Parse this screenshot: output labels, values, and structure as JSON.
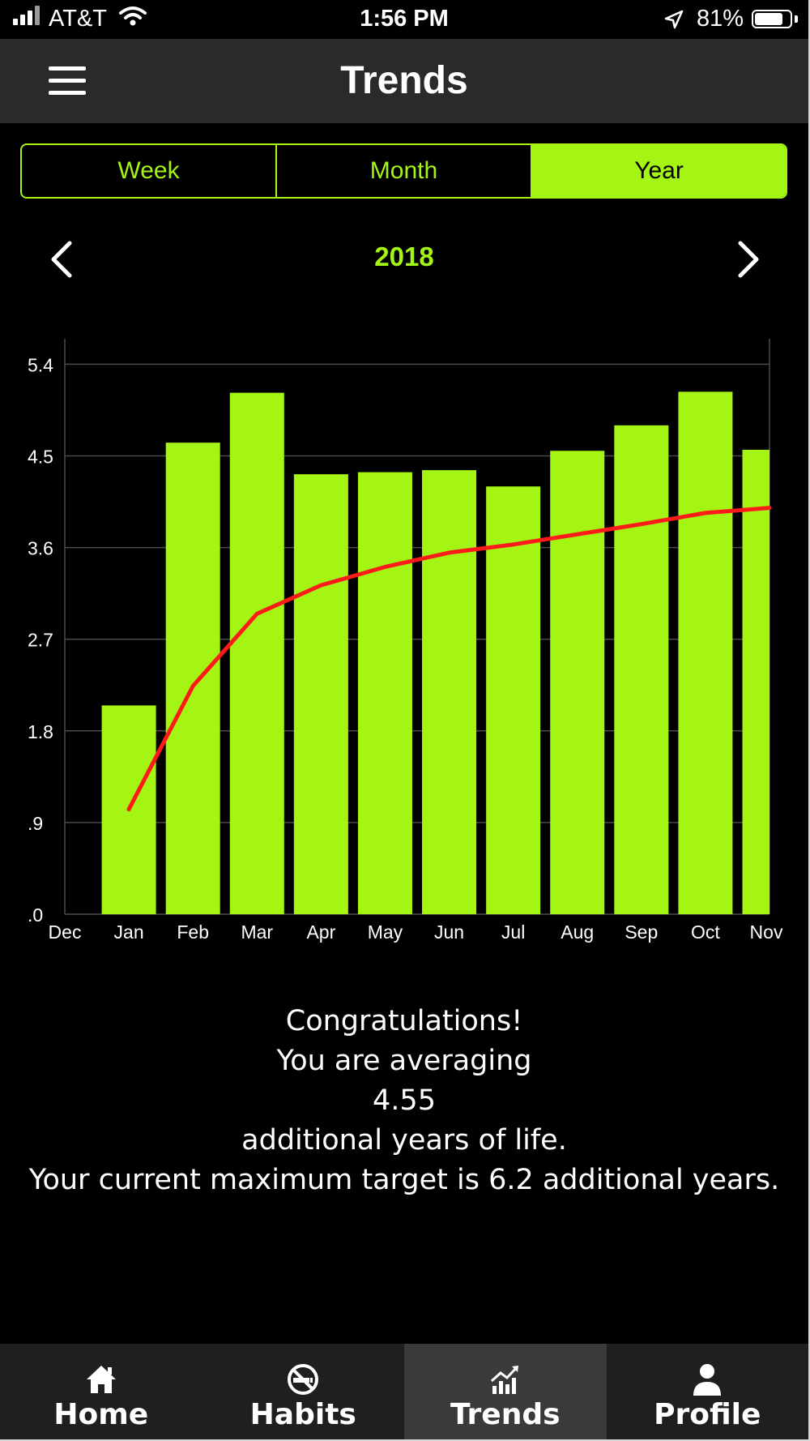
{
  "status_bar": {
    "carrier": "AT&T",
    "time": "1:56 PM",
    "battery_percent": "81%",
    "battery_level": 0.81,
    "icons": [
      "signal-bars-icon",
      "wifi-icon",
      "location-arrow-icon",
      "battery-icon"
    ]
  },
  "nav": {
    "title": "Trends",
    "menu_icon": "hamburger-menu-icon"
  },
  "period_tabs": {
    "options": [
      "Week",
      "Month",
      "Year"
    ],
    "selected": "Year"
  },
  "year_selector": {
    "label": "2018",
    "prev_icon": "chevron-left-icon",
    "next_icon": "chevron-right-icon"
  },
  "chart_data": {
    "type": "bar",
    "categories": [
      "Dec",
      "Jan",
      "Feb",
      "Mar",
      "Apr",
      "May",
      "Jun",
      "Jul",
      "Aug",
      "Sep",
      "Oct",
      "Nov"
    ],
    "series": [
      {
        "type": "bar",
        "values": [
          null,
          2.05,
          4.63,
          5.12,
          4.32,
          4.34,
          4.36,
          4.2,
          4.55,
          4.8,
          5.13,
          4.56
        ]
      },
      {
        "type": "line",
        "values": [
          null,
          1.03,
          2.24,
          2.95,
          3.23,
          3.41,
          3.55,
          3.63,
          3.73,
          3.83,
          3.94,
          3.99
        ]
      }
    ],
    "y_ticks": [
      ".0",
      ".9",
      "1.8",
      "2.7",
      "3.6",
      "4.5",
      "5.4"
    ],
    "ylim": [
      0,
      5.65
    ],
    "grid": true,
    "colors": {
      "bar": "#a4f514",
      "line": "#ff1a1a",
      "grid": "#4a4a4a"
    }
  },
  "message": {
    "line1": "Congratulations!",
    "line2": "You are averaging",
    "value": "4.55",
    "line3": "additional years of life.",
    "line4": "Your current maximum target is 6.2 additional years."
  },
  "tab_bar": {
    "items": [
      {
        "label": "Home",
        "icon": "home-icon"
      },
      {
        "label": "Habits",
        "icon": "no-smoking-icon"
      },
      {
        "label": "Trends",
        "icon": "trend-chart-icon"
      },
      {
        "label": "Profile",
        "icon": "person-icon"
      }
    ],
    "active": "Trends"
  },
  "colors": {
    "accent": "#a4f514",
    "trend_line": "#ff1a1a",
    "background": "#000000"
  }
}
